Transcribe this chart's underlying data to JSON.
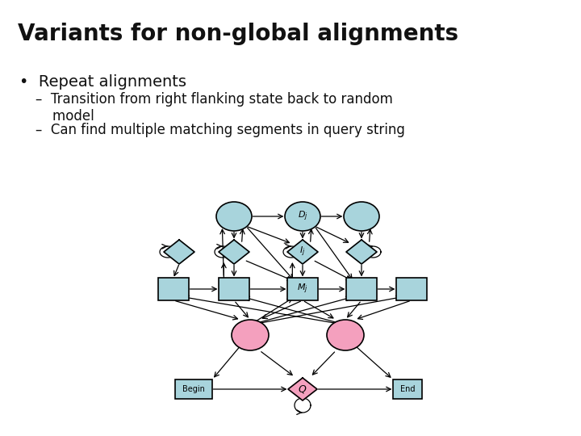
{
  "title": "Variants for non-global alignments",
  "bullet": "•  Repeat alignments",
  "sub1": "–  Transition from right flanking state back to random\n    model",
  "sub2": "–  Can find multiple matching segments in query string",
  "bg": "#ffffff",
  "blue": "#a8d4dc",
  "pink": "#f4a0be",
  "black": "#111111",
  "title_fs": 20,
  "bullet_fs": 14,
  "sub_fs": 12,
  "cols": [
    230,
    290,
    375,
    448,
    510
  ],
  "rows": [
    268,
    312,
    358,
    415,
    482
  ],
  "cw": 44,
  "ch": 36,
  "dw": 38,
  "dh": 30,
  "sw": 38,
  "sh": 28,
  "pw": 46,
  "ph": 38,
  "qw": 36,
  "qh": 28,
  "bw": 46,
  "bh": 24,
  "ew": 36,
  "eh": 24
}
